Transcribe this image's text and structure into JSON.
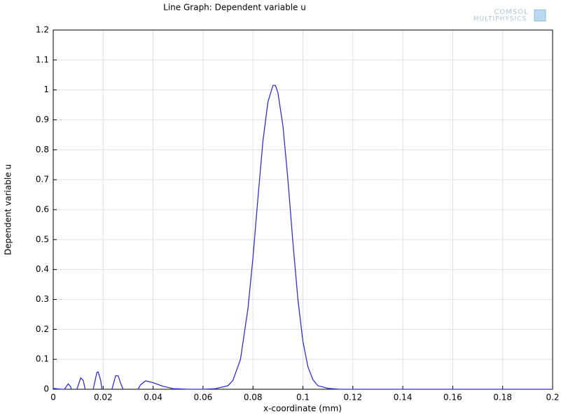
{
  "chart_data": {
    "type": "line",
    "title": "Line Graph: Dependent variable u",
    "x_label": "x-coordinate (mm)",
    "y_label": "Dependent variable u",
    "logo": [
      "COMSOL",
      "MULTIPHYSICS"
    ],
    "x": [
      0,
      0.002,
      0.004,
      0.0045,
      0.006,
      0.007,
      0.0072,
      null,
      0.0095,
      0.011,
      0.012,
      0.0128,
      null,
      0.016,
      0.0175,
      0.018,
      0.019,
      0.0195,
      null,
      0.0235,
      0.025,
      0.026,
      0.027,
      0.028,
      null,
      0.034,
      0.035,
      0.037,
      0.04,
      0.044,
      0.048,
      0.055,
      0.06,
      0.065,
      0.07,
      0.072,
      0.075,
      0.078,
      0.08,
      0.082,
      0.084,
      0.086,
      0.088,
      0.089,
      0.09,
      0.092,
      0.094,
      0.096,
      0.098,
      0.1,
      0.102,
      0.104,
      0.106,
      0.11,
      0.115,
      0.12,
      0.2
    ],
    "series": [
      {
        "name": "u",
        "color": "#2f2fd4",
        "values": [
          0.003,
          0.001,
          0,
          0,
          0.018,
          0.008,
          0,
          null,
          0,
          0.038,
          0.03,
          0,
          null,
          0,
          0.056,
          0.058,
          0.03,
          0,
          null,
          0,
          0.045,
          0.045,
          0.02,
          0,
          null,
          0,
          0.015,
          0.028,
          0.022,
          0.01,
          0.002,
          0,
          0,
          0.002,
          0.012,
          0.03,
          0.1,
          0.27,
          0.44,
          0.64,
          0.83,
          0.96,
          1.015,
          1.015,
          0.99,
          0.88,
          0.7,
          0.49,
          0.3,
          0.16,
          0.075,
          0.032,
          0.012,
          0.003,
          0,
          0,
          0
        ]
      }
    ],
    "xlim": [
      0,
      0.2
    ],
    "xticks": [
      0,
      0.02,
      0.04,
      0.06,
      0.08,
      0.1,
      0.12,
      0.14,
      0.16,
      0.18,
      0.2
    ],
    "ylim": [
      0,
      1.2
    ],
    "yticks": [
      0,
      0.1,
      0.2,
      0.3,
      0.4,
      0.5,
      0.6,
      0.7,
      0.8,
      0.9,
      1,
      1.1,
      1.2
    ],
    "grid": true
  }
}
